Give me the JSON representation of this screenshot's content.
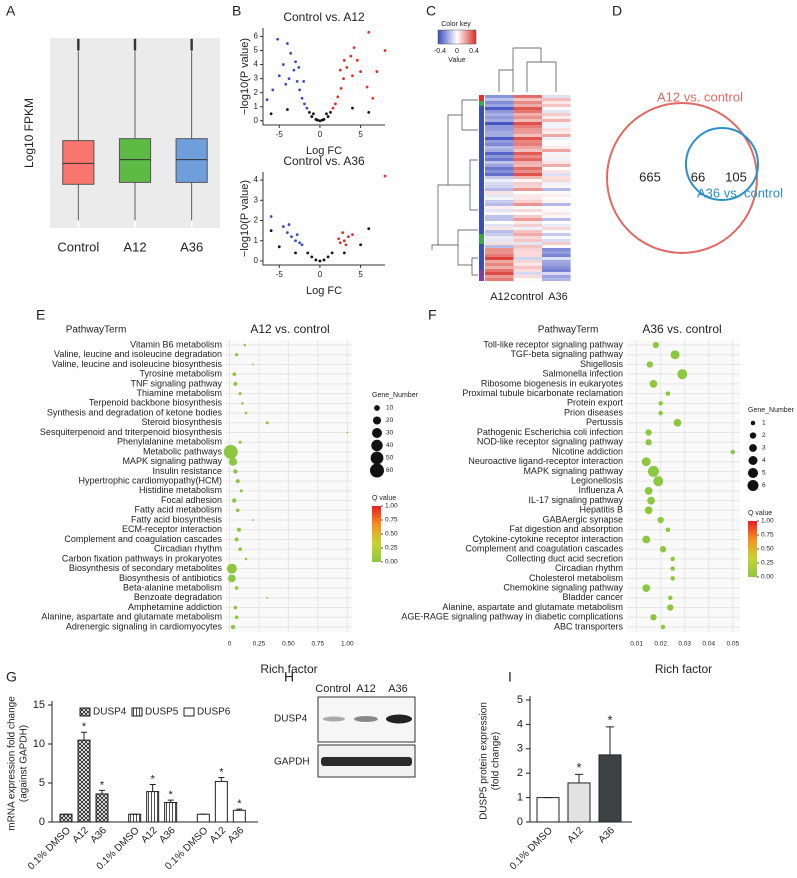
{
  "panel_labels": [
    "A",
    "B",
    "C",
    "D",
    "E",
    "F",
    "G",
    "H",
    "I"
  ],
  "chart_data": [
    {
      "type": "box",
      "ylabel": "Log10  FPKM",
      "categories": [
        "Control",
        "A12",
        "A36"
      ],
      "colors": [
        "#f8766d",
        "#5dba45",
        "#6f9fdb"
      ],
      "background": "#ebebeb",
      "grid": true,
      "ylim": [
        0,
        1
      ],
      "whisker_low": [
        0.04,
        0.04,
        0.04
      ],
      "q1": [
        0.23,
        0.24,
        0.24
      ],
      "median": [
        0.34,
        0.36,
        0.36
      ],
      "q3": [
        0.46,
        0.47,
        0.47
      ],
      "whisker_high": [
        0.93,
        0.93,
        0.93
      ],
      "fliers": [
        [
          0.94,
          0.95,
          0.96,
          0.97,
          0.98,
          0.99
        ],
        [
          0.94,
          0.95,
          0.96,
          0.97,
          0.98,
          0.99
        ],
        [
          0.94,
          0.95,
          0.96,
          0.97,
          0.98,
          0.99
        ]
      ]
    },
    {
      "type": "scatter",
      "title": "Control vs. A12",
      "xlabel": "Log FC",
      "ylabel": "−log10(P value)",
      "xlim": [
        -7,
        8
      ],
      "ylim": [
        -0.3,
        6.6
      ],
      "xticks": [
        -5,
        0,
        5
      ],
      "yticks": [
        0,
        1,
        2,
        3,
        4,
        5,
        6
      ],
      "series": [
        {
          "color": "#3a4fb5",
          "x": [
            -6.5,
            -5.8,
            -5,
            -4.5,
            -4,
            -3.6,
            -3.2,
            -2.8,
            -2.5,
            -2.2,
            -1.9,
            -1.6,
            -3,
            -3.8,
            -4.2,
            -2,
            -2.6,
            -5.2
          ],
          "y": [
            1.5,
            2.2,
            3.2,
            4,
            5.5,
            4.8,
            3.6,
            2.8,
            2.2,
            1.6,
            1.2,
            0.9,
            4.2,
            3,
            2.6,
            2.8,
            3.8,
            5.8
          ]
        },
        {
          "color": "#e0302a",
          "x": [
            6.5,
            5.8,
            5,
            4.6,
            4.2,
            3.8,
            3.3,
            2.9,
            2.6,
            2.2,
            1.9,
            1.6,
            3,
            4,
            7,
            2.5,
            6,
            8
          ],
          "y": [
            1.6,
            2.4,
            3.5,
            4.3,
            5.2,
            4.6,
            3.8,
            3,
            2.3,
            1.7,
            1.2,
            0.9,
            4.3,
            3.2,
            3.5,
            3.6,
            6.3,
            5
          ]
        },
        {
          "color": "#111111",
          "x": [
            -1,
            -0.5,
            0,
            0.5,
            1,
            -1.3,
            1.3,
            -0.8,
            0.8,
            -0.3,
            0.3,
            -6,
            6,
            -4,
            4
          ],
          "y": [
            0.3,
            0.1,
            0,
            0.1,
            0.3,
            0.6,
            0.6,
            0.5,
            0.5,
            0.05,
            0.05,
            0.5,
            0.6,
            0.8,
            0.9
          ]
        }
      ]
    },
    {
      "type": "scatter",
      "title": "Control vs. A36",
      "xlabel": "Log FC",
      "ylabel": "−log10(P value)",
      "xlim": [
        -7,
        8
      ],
      "ylim": [
        -0.2,
        4.4
      ],
      "xticks": [
        -5,
        0,
        5
      ],
      "yticks": [
        0,
        1,
        2,
        3,
        4
      ],
      "series": [
        {
          "color": "#3a4fb5",
          "x": [
            -4.5,
            -4,
            -3.5,
            -3,
            -2.5,
            -2.2,
            -6,
            -3.8,
            -2.8
          ],
          "y": [
            1.7,
            1.4,
            1.2,
            1,
            0.9,
            0.8,
            2.2,
            1.8,
            1.3
          ]
        },
        {
          "color": "#e0302a",
          "x": [
            2.5,
            3,
            3.5,
            4,
            2.8,
            3.2,
            8,
            2.3
          ],
          "y": [
            0.9,
            1,
            1.2,
            1.3,
            1.4,
            0.8,
            4.2,
            1.1
          ]
        },
        {
          "color": "#111111",
          "x": [
            -1,
            -0.5,
            0,
            0.5,
            1,
            -1.5,
            1.5,
            -5,
            5,
            -6,
            6,
            -3,
            3
          ],
          "y": [
            0.2,
            0.05,
            0,
            0.05,
            0.2,
            0.4,
            0.4,
            0.7,
            0.8,
            1.5,
            1.6,
            0.4,
            0.4
          ]
        }
      ]
    },
    {
      "type": "bubble",
      "title": "A12 vs. control",
      "ylabel": "PathwayTerm",
      "xlabel": "Rich factor",
      "categories": [
        "Vitamin B6 metabolism",
        "Valine, leucine and isoleucine degradation",
        "Valine, leucine and isoleucine biosynthesis",
        "Tyrosine metabolism",
        "TNF signaling pathway",
        "Thiamine metabolism",
        "Terpenoid backbone biosynthesis",
        "Synthesis and degradation of ketone bodies",
        "Steroid biosynthesis",
        "Sesquiterpenoid and triterpenoid biosynthesis",
        "Phenylalanine metabolism",
        "Metabolic pathways",
        "MAPK signaling pathway",
        "Insulin resistance",
        "Hypertrophic cardiomyopathy(HCM)",
        "Histidine metabolism",
        "Focal adhesion",
        "Fatty acid metabolism",
        "Fatty acid biosynthesis",
        "ECM-receptor interaction",
        "Complement and coagulation cascades",
        "Circadian rhythm",
        "Carbon fixation pathways in prokaryotes",
        "Biosynthesis of secondary metabolites",
        "Biosynthesis of antibiotics",
        "Beta-alanine metabolism",
        "Benzoate degradation",
        "Amphetamine addiction",
        "Alanine, aspartate and glutamate metabolism",
        "Adrenergic signaling in cardiomyocytes"
      ],
      "values": [
        0.13,
        0.06,
        0.2,
        0.04,
        0.05,
        0.09,
        0.11,
        0.14,
        0.32,
        1.0,
        0.09,
        0.01,
        0.03,
        0.05,
        0.07,
        0.1,
        0.04,
        0.07,
        0.2,
        0.08,
        0.06,
        0.09,
        0.14,
        0.02,
        0.02,
        0.06,
        0.32,
        0.05,
        0.06,
        0.03
      ],
      "sizes": [
        2,
        3,
        1,
        4,
        5,
        3,
        2,
        2,
        3,
        1,
        3,
        60,
        20,
        6,
        5,
        3,
        6,
        4,
        1,
        5,
        5,
        4,
        2,
        30,
        18,
        4,
        1,
        4,
        4,
        6
      ],
      "color": "#8dc63f",
      "xlim": [
        -0.03,
        1.04
      ],
      "xticks": [
        0,
        0.25,
        {
          "value": 0.5,
          "label": "0.50"
        },
        0.75,
        {
          "value": 1,
          "label": "1.00"
        }
      ],
      "size_legend": {
        "title": "Gene_Number",
        "values": [
          10,
          20,
          30,
          40,
          50,
          60
        ]
      },
      "color_legend": {
        "title": "Q value",
        "colors": [
          "#8dc63f",
          "#c4d52f",
          "#f6921e",
          "#ec1c24"
        ],
        "ticks": [
          {
            "value": 0,
            "label": "0.00"
          },
          0.25,
          {
            "value": 0.5,
            "label": "0.50"
          },
          0.75,
          {
            "value": 1,
            "label": "1.00"
          }
        ]
      }
    },
    {
      "type": "bubble",
      "title": "A36 vs. control",
      "ylabel": "PathwayTerm",
      "xlabel": "Rich factor",
      "categories": [
        "Toll-like receptor signaling pathway",
        "TGF-beta signaling pathway",
        "Shigellosis",
        "Salmonella infection",
        "Ribosome biogenesis in eukaryotes",
        "Proximal tubule bicarbonate reclamation",
        "Protein export",
        "Prion diseases",
        "Pertussis",
        "Pathogenic Escherichia coli infection",
        "NOD-like receptor signaling pathway",
        "Nicotine addiction",
        "Neuroactive ligand-receptor interaction",
        "MAPK signaling pathway",
        "Legionellosis",
        "Influenza A",
        "IL-17 signaling pathway",
        "Hepatitis B",
        "GABAergic synapse",
        "Fat digestion and absorption",
        "Cytokine-cytokine receptor interaction",
        "Complement and coagulation cascades",
        "Collecting duct acid secretion",
        "Circadian rhythm",
        "Cholesterol metabolism",
        "Chemokine signaling pathway",
        "Bladder cancer",
        "Alanine, aspartate and glutamate metabolism",
        "AGE-RAGE signaling pathway in diabetic complications",
        "ABC transporters"
      ],
      "values": [
        0.018,
        0.026,
        0.0155,
        0.029,
        0.017,
        0.023,
        0.02,
        0.02,
        0.027,
        0.015,
        0.015,
        0.05,
        0.014,
        0.017,
        0.019,
        0.015,
        0.016,
        0.015,
        0.02,
        0.023,
        0.014,
        0.021,
        0.025,
        0.025,
        0.025,
        0.014,
        0.024,
        0.024,
        0.017,
        0.021
      ],
      "sizes": [
        2,
        4,
        2,
        5,
        3,
        1,
        1,
        1,
        3,
        2,
        2,
        1,
        4,
        6,
        5,
        3,
        3,
        3,
        2,
        1,
        3,
        2,
        1,
        1,
        1,
        3,
        1,
        2,
        2,
        1
      ],
      "color": "#8dc63f",
      "xlim": [
        0.006,
        0.053
      ],
      "xticks": [
        0.01,
        0.02,
        0.03,
        0.04,
        0.05
      ],
      "size_legend": {
        "title": "Gene_Number",
        "values": [
          1,
          2,
          3,
          4,
          5,
          6
        ]
      },
      "color_legend": {
        "title": "Q value",
        "colors": [
          "#8dc63f",
          "#c4d52f",
          "#f6921e",
          "#ec1c24"
        ],
        "ticks": [
          {
            "value": 0,
            "label": "0.00"
          },
          0.25,
          {
            "value": 0.5,
            "label": "0.50"
          },
          0.75,
          {
            "value": 1,
            "label": "1.00"
          }
        ]
      }
    },
    {
      "type": "grouped_bar",
      "ylabel": [
        "mRNA expression fold change",
        "(against GAPDH)"
      ],
      "categories": [
        "0.1% DMSO",
        "A12",
        "A36"
      ],
      "ylim": [
        0,
        15
      ],
      "yticks": [
        0,
        5,
        10,
        15
      ],
      "series": [
        {
          "name": "DUSP4",
          "pattern": "crosshatch",
          "values": [
            1,
            10.5,
            3.6
          ],
          "errors": [
            0,
            1.0,
            0.45
          ],
          "annotations": [
            null,
            "*",
            "*"
          ]
        },
        {
          "name": "DUSP5",
          "pattern": "vertical",
          "values": [
            1,
            3.9,
            2.5
          ],
          "errors": [
            0,
            0.9,
            0.3
          ],
          "annotations": [
            null,
            "*",
            "*"
          ]
        },
        {
          "name": "DUSP6",
          "pattern": "none",
          "values": [
            1,
            5.2,
            1.5
          ],
          "errors": [
            0,
            0.5,
            0.15
          ],
          "annotations": [
            null,
            "*",
            "*"
          ]
        }
      ]
    },
    {
      "type": "bar",
      "ylabel": [
        "DUSP5 protein expression",
        "(fold change)"
      ],
      "categories": [
        "0.1% DMSO",
        "A12",
        "A36"
      ],
      "values": [
        1,
        1.6,
        2.75
      ],
      "errors": [
        0,
        0.35,
        1.15
      ],
      "colors": [
        "#ffffff",
        "#e2e2e2",
        "#3c4142"
      ],
      "annotations": [
        null,
        "*",
        "*"
      ],
      "ylim": [
        0,
        5
      ],
      "yticks": [
        0,
        1,
        2,
        3,
        4,
        5
      ]
    }
  ],
  "heatmap": {
    "color_key": "Color key",
    "key_label": "Value",
    "key_ticks": [
      -0.4,
      0,
      0.4
    ],
    "columns": [
      "A12",
      "control",
      "A36"
    ]
  },
  "venn": {
    "sets": [
      "A12 vs. control",
      "A36 vs. control"
    ],
    "colors": [
      "#e06a63",
      "#2a8fc7"
    ],
    "only_a": 665,
    "both": 66,
    "only_b": 105
  },
  "blot": {
    "lanes": [
      "Control",
      "A12",
      "A36"
    ],
    "proteins": [
      "DUSP4",
      "GAPDH"
    ]
  }
}
